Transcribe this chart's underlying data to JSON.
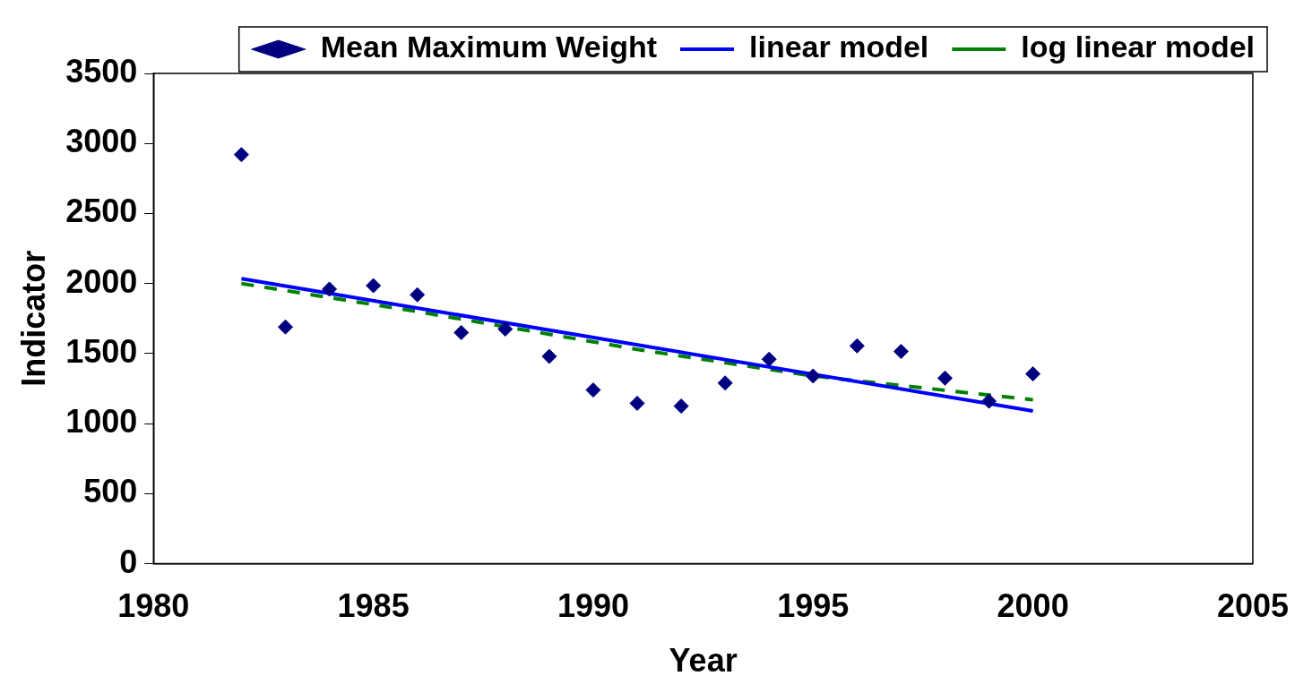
{
  "chart_data": {
    "type": "scatter",
    "xlabel": "Year",
    "ylabel": "Indicator",
    "xlim": [
      1980,
      2005
    ],
    "xticks": [
      1980,
      1985,
      1990,
      1995,
      2000,
      2005
    ],
    "ylim": [
      0,
      3500
    ],
    "yticks": [
      0,
      500,
      1000,
      1500,
      2000,
      2500,
      3000,
      3500
    ],
    "legend": "top right",
    "series": [
      {
        "name": "Mean Maximum Weight",
        "type": "scatter",
        "color": "#000080",
        "marker": "diamond",
        "x": [
          1982,
          1983,
          1984,
          1985,
          1986,
          1987,
          1988,
          1989,
          1990,
          1991,
          1992,
          1993,
          1994,
          1995,
          1996,
          1997,
          1998,
          1999,
          2000
        ],
        "values": [
          2920,
          1690,
          1960,
          1985,
          1920,
          1650,
          1675,
          1480,
          1240,
          1145,
          1125,
          1290,
          1460,
          1340,
          1555,
          1515,
          1325,
          1160,
          1355
        ]
      },
      {
        "name": "linear model",
        "type": "line",
        "color": "#0000ff",
        "line_style": "solid",
        "marker": "none",
        "x": [
          1982,
          2000
        ],
        "values": [
          2035,
          1090
        ]
      },
      {
        "name": "log linear model",
        "type": "line",
        "color": "#008000",
        "line_style": "dashed",
        "marker": "none",
        "x": [
          1982,
          1986,
          1991,
          1995,
          2000
        ],
        "values": [
          2000,
          1800,
          1530,
          1340,
          1170
        ]
      }
    ]
  }
}
